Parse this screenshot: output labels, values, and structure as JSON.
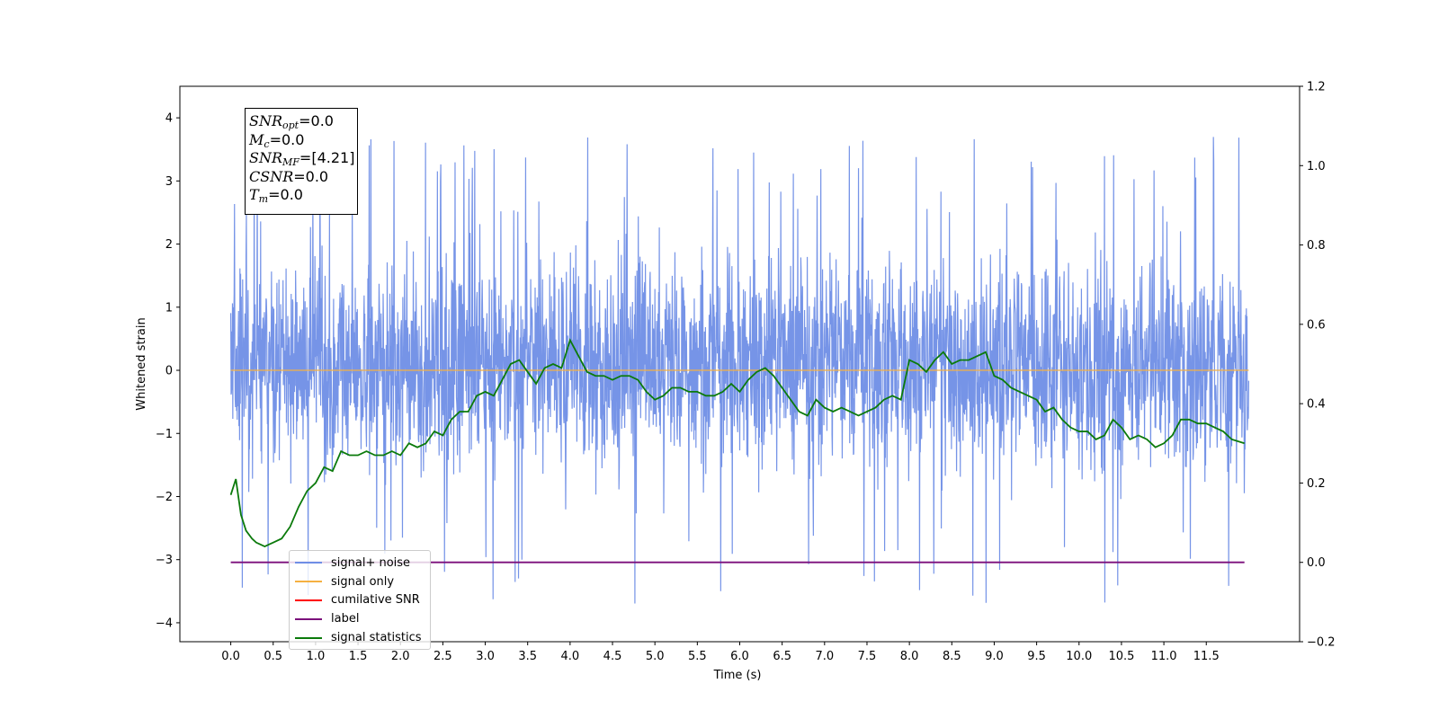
{
  "chart_data": {
    "type": "line",
    "xlabel": "Time (s)",
    "ylabel": "Whitened strain",
    "xlim": [
      -0.6,
      12.6
    ],
    "ylim": [
      -4.3,
      4.5
    ],
    "y2lim": [
      -0.2,
      1.2
    ],
    "x_ticks": [
      0.0,
      0.5,
      1.0,
      1.5,
      2.0,
      2.5,
      3.0,
      3.5,
      4.0,
      4.5,
      5.0,
      5.5,
      6.0,
      6.5,
      7.0,
      7.5,
      8.0,
      8.5,
      9.0,
      9.5,
      10.0,
      10.5,
      11.0,
      11.5
    ],
    "x_tick_labels": [
      "0.0",
      "0.5",
      "1.0",
      "1.5",
      "2.0",
      "2.5",
      "3.0",
      "3.5",
      "4.0",
      "4.5",
      "5.0",
      "5.5",
      "6.0",
      "6.5",
      "7.0",
      "7.5",
      "8.0",
      "8.5",
      "9.0",
      "9.5",
      "10.0",
      "10.5",
      "11.0",
      "11.5"
    ],
    "y_ticks": [
      -4,
      -3,
      -2,
      -1,
      0,
      1,
      2,
      3,
      4
    ],
    "y_tick_labels": [
      "−4",
      "−3",
      "−2",
      "−1",
      "0",
      "1",
      "2",
      "3",
      "4"
    ],
    "y2_ticks": [
      -0.2,
      0.0,
      0.2,
      0.4,
      0.6,
      0.8,
      1.0,
      1.2
    ],
    "y2_tick_labels": [
      "−0.2",
      "0.0",
      "0.2",
      "0.4",
      "0.6",
      "0.8",
      "1.0",
      "1.2"
    ],
    "grid": false,
    "legend_position": "lower-left",
    "series": [
      {
        "name": "signal+ noise",
        "axis": "left",
        "color": "#6f8ee6",
        "kind": "noise",
        "x_range": [
          0.0,
          12.0
        ],
        "typical_envelope": [
          -1.8,
          2.0
        ],
        "max": 4.05,
        "min": -3.85
      },
      {
        "name": "signal only",
        "axis": "left",
        "color": "#f5b041",
        "x": [
          0.0,
          12.0
        ],
        "y": [
          0.0,
          0.0
        ]
      },
      {
        "name": "cumilative SNR",
        "axis": "left",
        "color": "#ff0000",
        "x": [],
        "y": []
      },
      {
        "name": "label",
        "axis": "right",
        "color": "#7b0f7b",
        "x": [
          0.0,
          11.95
        ],
        "y": [
          0.0,
          0.0
        ]
      },
      {
        "name": "signal statistics",
        "axis": "right",
        "color": "#0b7a0b",
        "x": [
          0.0,
          0.06,
          0.12,
          0.18,
          0.25,
          0.3,
          0.35,
          0.4,
          0.45,
          0.5,
          0.6,
          0.7,
          0.8,
          0.9,
          1.0,
          1.1,
          1.2,
          1.3,
          1.4,
          1.5,
          1.6,
          1.7,
          1.8,
          1.9,
          2.0,
          2.1,
          2.2,
          2.3,
          2.4,
          2.5,
          2.6,
          2.7,
          2.8,
          2.9,
          3.0,
          3.1,
          3.2,
          3.3,
          3.4,
          3.5,
          3.6,
          3.7,
          3.8,
          3.9,
          4.0,
          4.1,
          4.2,
          4.3,
          4.4,
          4.5,
          4.6,
          4.7,
          4.8,
          4.9,
          5.0,
          5.1,
          5.2,
          5.3,
          5.4,
          5.5,
          5.6,
          5.7,
          5.8,
          5.9,
          6.0,
          6.1,
          6.2,
          6.3,
          6.4,
          6.5,
          6.6,
          6.7,
          6.8,
          6.9,
          7.0,
          7.1,
          7.2,
          7.3,
          7.4,
          7.5,
          7.6,
          7.7,
          7.8,
          7.9,
          8.0,
          8.1,
          8.2,
          8.3,
          8.4,
          8.5,
          8.6,
          8.7,
          8.8,
          8.9,
          9.0,
          9.1,
          9.2,
          9.3,
          9.4,
          9.5,
          9.6,
          9.7,
          9.8,
          9.9,
          10.0,
          10.1,
          10.2,
          10.3,
          10.4,
          10.5,
          10.6,
          10.7,
          10.8,
          10.9,
          11.0,
          11.1,
          11.2,
          11.3,
          11.4,
          11.5,
          11.6,
          11.7,
          11.8,
          11.95
        ],
        "y": [
          0.17,
          0.21,
          0.12,
          0.08,
          0.06,
          0.05,
          0.045,
          0.04,
          0.045,
          0.05,
          0.06,
          0.09,
          0.14,
          0.18,
          0.2,
          0.24,
          0.23,
          0.28,
          0.27,
          0.27,
          0.28,
          0.27,
          0.27,
          0.28,
          0.27,
          0.3,
          0.29,
          0.3,
          0.33,
          0.32,
          0.36,
          0.38,
          0.38,
          0.42,
          0.43,
          0.42,
          0.46,
          0.5,
          0.51,
          0.48,
          0.45,
          0.49,
          0.5,
          0.49,
          0.56,
          0.52,
          0.48,
          0.47,
          0.47,
          0.46,
          0.47,
          0.47,
          0.46,
          0.43,
          0.41,
          0.42,
          0.44,
          0.44,
          0.43,
          0.43,
          0.42,
          0.42,
          0.43,
          0.45,
          0.43,
          0.46,
          0.48,
          0.49,
          0.47,
          0.44,
          0.41,
          0.38,
          0.37,
          0.41,
          0.39,
          0.38,
          0.39,
          0.38,
          0.37,
          0.38,
          0.39,
          0.41,
          0.42,
          0.41,
          0.51,
          0.5,
          0.48,
          0.51,
          0.53,
          0.5,
          0.51,
          0.51,
          0.52,
          0.53,
          0.47,
          0.46,
          0.44,
          0.43,
          0.42,
          0.41,
          0.38,
          0.39,
          0.36,
          0.34,
          0.33,
          0.33,
          0.31,
          0.32,
          0.36,
          0.34,
          0.31,
          0.32,
          0.31,
          0.29,
          0.3,
          0.32,
          0.36,
          0.36,
          0.35,
          0.35,
          0.34,
          0.33,
          0.31,
          0.3
        ]
      }
    ]
  },
  "stats_box": {
    "snr_opt_value": "=0.0",
    "mc_value": "=0.0",
    "snr_mf_value": "=[4.21]",
    "csnr_value": "=0.0",
    "tm_value": "=0.0"
  },
  "legend_labels": [
    "signal+ noise",
    "signal only",
    "cumilative SNR",
    "label",
    "signal statistics"
  ]
}
